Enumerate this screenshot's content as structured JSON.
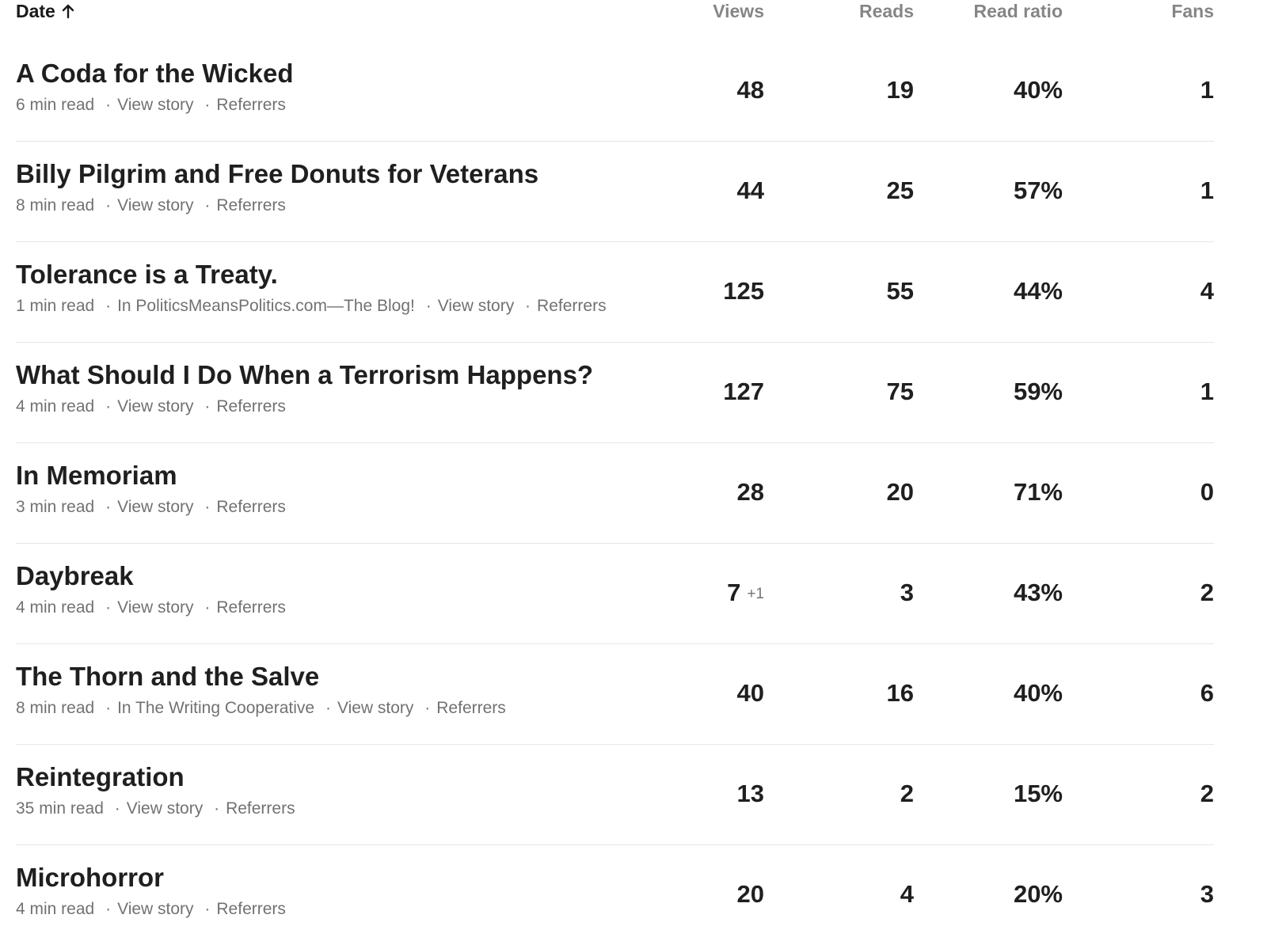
{
  "header": {
    "date_label": "Date",
    "sort_icon": "arrow-up-icon",
    "views_label": "Views",
    "reads_label": "Reads",
    "read_ratio_label": "Read ratio",
    "fans_label": "Fans"
  },
  "meta_separator": "·",
  "stories": [
    {
      "title": "A Coda for the Wicked",
      "read_time": "6 min read",
      "publication": "",
      "view_story": "View story",
      "referrers": "Referrers",
      "views": "48",
      "views_delta": "",
      "reads": "19",
      "read_ratio": "40%",
      "fans": "1"
    },
    {
      "title": "Billy Pilgrim and Free Donuts for Veterans",
      "read_time": "8 min read",
      "publication": "",
      "view_story": "View story",
      "referrers": "Referrers",
      "views": "44",
      "views_delta": "",
      "reads": "25",
      "read_ratio": "57%",
      "fans": "1"
    },
    {
      "title": "Tolerance is a Treaty.",
      "read_time": "1 min read",
      "publication": "In PoliticsMeansPolitics.com—The Blog!",
      "view_story": "View story",
      "referrers": "Referrers",
      "views": "125",
      "views_delta": "",
      "reads": "55",
      "read_ratio": "44%",
      "fans": "4"
    },
    {
      "title": "What Should I Do When a Terrorism Happens?",
      "read_time": "4 min read",
      "publication": "",
      "view_story": "View story",
      "referrers": "Referrers",
      "views": "127",
      "views_delta": "",
      "reads": "75",
      "read_ratio": "59%",
      "fans": "1"
    },
    {
      "title": "In Memoriam",
      "read_time": "3 min read",
      "publication": "",
      "view_story": "View story",
      "referrers": "Referrers",
      "views": "28",
      "views_delta": "",
      "reads": "20",
      "read_ratio": "71%",
      "fans": "0"
    },
    {
      "title": "Daybreak",
      "read_time": "4 min read",
      "publication": "",
      "view_story": "View story",
      "referrers": "Referrers",
      "views": "7",
      "views_delta": "+1",
      "reads": "3",
      "read_ratio": "43%",
      "fans": "2"
    },
    {
      "title": "The Thorn and the Salve",
      "read_time": "8 min read",
      "publication": "In The Writing Cooperative",
      "view_story": "View story",
      "referrers": "Referrers",
      "views": "40",
      "views_delta": "",
      "reads": "16",
      "read_ratio": "40%",
      "fans": "6"
    },
    {
      "title": "Reintegration",
      "read_time": "35 min read",
      "publication": "",
      "view_story": "View story",
      "referrers": "Referrers",
      "views": "13",
      "views_delta": "",
      "reads": "2",
      "read_ratio": "15%",
      "fans": "2"
    },
    {
      "title": "Microhorror",
      "read_time": "4 min read",
      "publication": "",
      "view_story": "View story",
      "referrers": "Referrers",
      "views": "20",
      "views_delta": "",
      "reads": "4",
      "read_ratio": "20%",
      "fans": "3"
    }
  ]
}
